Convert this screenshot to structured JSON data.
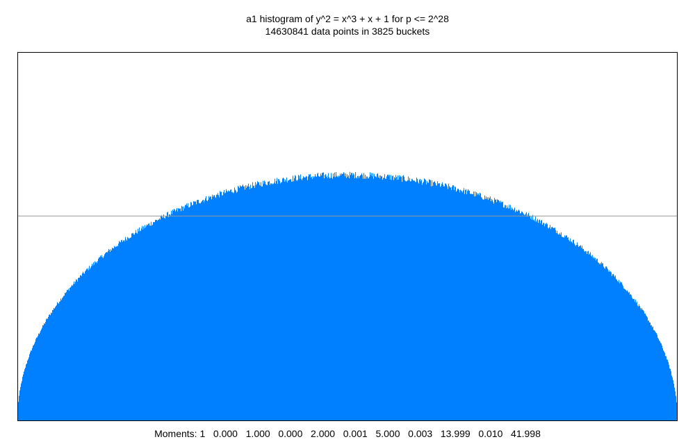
{
  "chart_data": {
    "type": "bar",
    "title": "a1 histogram of y^2 = x^3 + x + 1 for p <= 2^28",
    "subtitle": "14630841 data points in 3825 buckets",
    "distribution": "semicircle",
    "buckets": 3825,
    "data_points": 14630841,
    "x_range": [
      -2,
      2
    ],
    "y_range": [
      0,
      1.2
    ],
    "peak_density": 0.8,
    "reference_line_y": 0.6667,
    "grid": false,
    "legend": "none",
    "moments_label": "Moments:",
    "moments": [
      "1",
      "0.000",
      "1.000",
      "0.000",
      "2.000",
      "0.001",
      "5.000",
      "0.003",
      "13.999",
      "0.010",
      "41.998"
    ]
  },
  "colors": {
    "bars": "#0080ff",
    "frame": "#000000",
    "reference_line": "#999999"
  }
}
